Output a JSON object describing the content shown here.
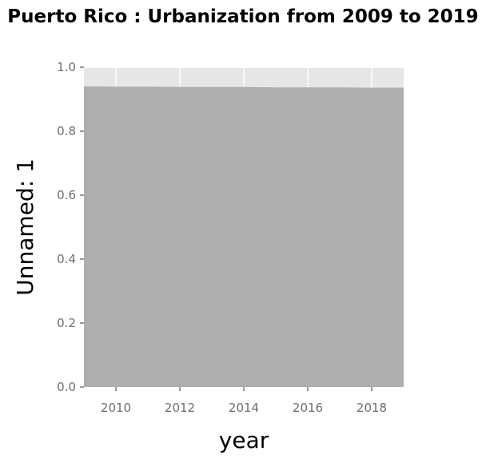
{
  "chart_data": {
    "type": "area",
    "title": "Puerto Rico : Urbanization from 2009 to 2019",
    "xlabel": "year",
    "ylabel": "Unnamed: 1",
    "x": [
      2009,
      2010,
      2011,
      2012,
      2013,
      2014,
      2015,
      2016,
      2017,
      2018,
      2019
    ],
    "series": [
      {
        "values": [
          0.94,
          0.939,
          0.939,
          0.938,
          0.938,
          0.938,
          0.937,
          0.937,
          0.937,
          0.936,
          0.936
        ]
      }
    ],
    "xlim": [
      2009,
      2019
    ],
    "ylim": [
      0,
      1.0
    ],
    "xticks": [
      2010,
      2012,
      2014,
      2016,
      2018
    ],
    "yticks": [
      0.0,
      0.2,
      0.4,
      0.6,
      0.8,
      1.0
    ],
    "ytick_labels": [
      "0.0",
      "0.2",
      "0.4",
      "0.6",
      "0.8",
      "1.0"
    ],
    "grid": true,
    "colors": {
      "panel": "#e6e6e6",
      "fill": "#aeaeae",
      "grid": "#ffffff",
      "tick_text": "#6e6e6e"
    }
  }
}
